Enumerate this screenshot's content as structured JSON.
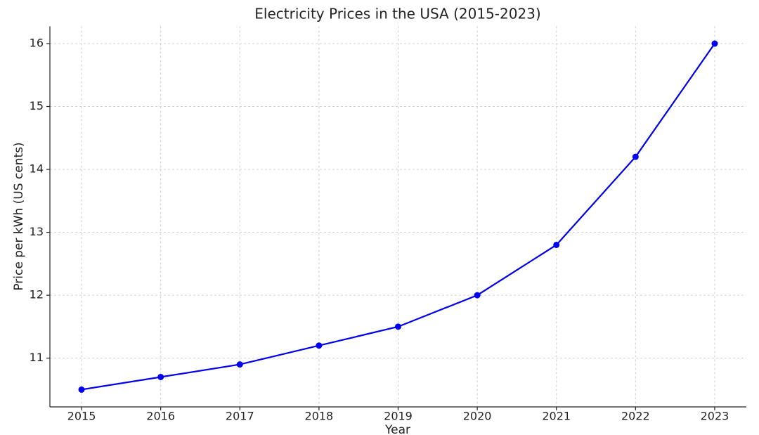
{
  "chart_data": {
    "type": "line",
    "title": "Electricity Prices in the USA (2015-2023)",
    "x_label": "Year",
    "y_label": "Price per kWh (US cents)",
    "x": [
      2015,
      2016,
      2017,
      2018,
      2019,
      2020,
      2021,
      2022,
      2023
    ],
    "series": [
      {
        "color": "#0000ee",
        "values": [
          10.5,
          10.7,
          10.9,
          11.2,
          11.5,
          12.0,
          12.8,
          14.2,
          16.0
        ]
      }
    ],
    "xlim": [
      2014.6,
      2023.4
    ],
    "xticks": [
      2015,
      2016,
      2017,
      2018,
      2019,
      2020,
      2021,
      2022,
      2023
    ],
    "ylim": [
      10.225,
      16.275
    ],
    "yticks": [
      11,
      12,
      13,
      14,
      15,
      16
    ],
    "grid": true
  }
}
